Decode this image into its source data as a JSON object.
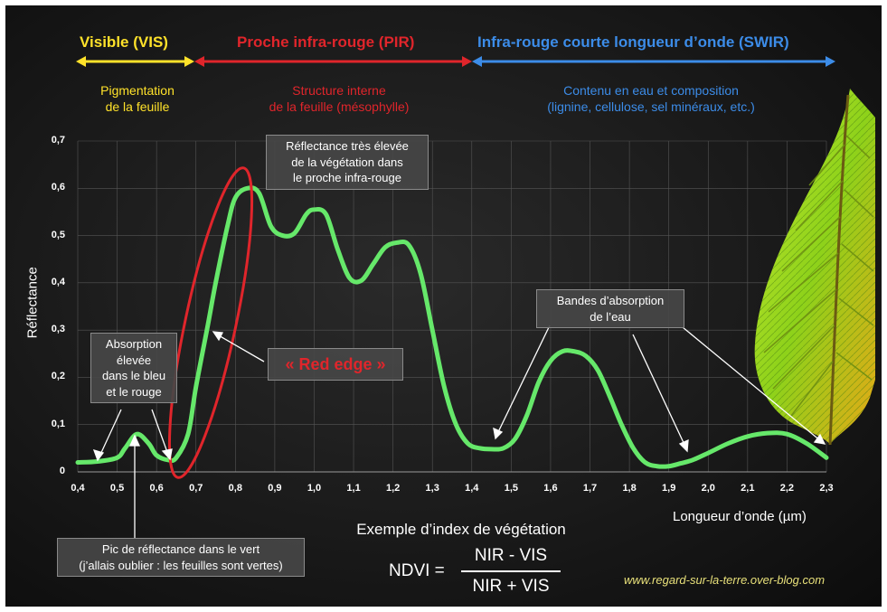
{
  "colors": {
    "curve": "#66e86a",
    "visible": "#ffe22a",
    "nir": "#e0252b",
    "swir": "#3c8ce8",
    "grid": "#555555",
    "url": "#e8e07a"
  },
  "bands": {
    "visible": {
      "title": "Visible (VIS)",
      "desc": "Pigmentation\nde la feuille"
    },
    "nir": {
      "title": "Proche infra-rouge (PIR)",
      "desc": "Structure interne\nde la feuille (mésophylle)"
    },
    "swir": {
      "title": "Infra-rouge courte longueur d’onde (SWIR)",
      "desc": "Contenu en eau et composition\n(lignine, cellulose, sel minéraux, etc.)"
    }
  },
  "annotations": {
    "high_reflectance": "Réflectance très élevée\nde la végétation dans\nle proche infra-rouge",
    "absorption": "Absorption\nélevée\ndans le bleu\net le rouge",
    "red_edge": "« Red edge »",
    "water_bands": "Bandes d’absorption\nde l’eau",
    "green_peak": "Pic de réflectance dans le vert\n(j’allais oublier : les feuilles sont vertes)"
  },
  "ndvi": {
    "caption": "Exemple d’index de végétation",
    "lhs": "NDVI =",
    "numerator": "NIR - VIS",
    "denominator": "NIR + VIS"
  },
  "website": "www.regard-sur-la-terre.over-blog.com",
  "chart_data": {
    "type": "line",
    "xlabel": "Longueur d’onde (µm)",
    "ylabel": "Réflectance",
    "xlim": [
      0.4,
      2.3
    ],
    "ylim": [
      0,
      0.7
    ],
    "grid": true,
    "x_ticks": [
      "0,4",
      "0,5",
      "0,6",
      "0,7",
      "0,8",
      "0,9",
      "1,0",
      "1,1",
      "1,2",
      "1,3",
      "1,4",
      "1,5",
      "1,6",
      "1,7",
      "1,8",
      "1,9",
      "2,0",
      "2,1",
      "2,2",
      "2,3"
    ],
    "y_ticks": [
      "0",
      "0,1",
      "0,2",
      "0,3",
      "0,4",
      "0,5",
      "0,6",
      "0,7"
    ],
    "series": [
      {
        "x": [
          0.4,
          0.45,
          0.5,
          0.52,
          0.55,
          0.58,
          0.6,
          0.63,
          0.65,
          0.68,
          0.7,
          0.73,
          0.75,
          0.78,
          0.8,
          0.83,
          0.86,
          0.89,
          0.92,
          0.95,
          0.98,
          1.0,
          1.03,
          1.06,
          1.09,
          1.12,
          1.15,
          1.18,
          1.21,
          1.24,
          1.27,
          1.3,
          1.33,
          1.36,
          1.39,
          1.42,
          1.45,
          1.48,
          1.51,
          1.54,
          1.57,
          1.6,
          1.63,
          1.66,
          1.69,
          1.72,
          1.75,
          1.78,
          1.81,
          1.84,
          1.87,
          1.9,
          1.93,
          1.96,
          2.0,
          2.05,
          2.1,
          2.15,
          2.2,
          2.25,
          2.3
        ],
        "y": [
          0.02,
          0.022,
          0.03,
          0.05,
          0.08,
          0.06,
          0.035,
          0.025,
          0.03,
          0.08,
          0.18,
          0.31,
          0.4,
          0.52,
          0.58,
          0.6,
          0.59,
          0.52,
          0.5,
          0.505,
          0.545,
          0.555,
          0.545,
          0.47,
          0.41,
          0.405,
          0.44,
          0.475,
          0.485,
          0.48,
          0.42,
          0.3,
          0.18,
          0.1,
          0.06,
          0.05,
          0.048,
          0.05,
          0.07,
          0.12,
          0.19,
          0.235,
          0.255,
          0.255,
          0.245,
          0.215,
          0.16,
          0.1,
          0.05,
          0.02,
          0.012,
          0.012,
          0.018,
          0.025,
          0.04,
          0.06,
          0.075,
          0.082,
          0.08,
          0.06,
          0.03
        ]
      }
    ]
  }
}
